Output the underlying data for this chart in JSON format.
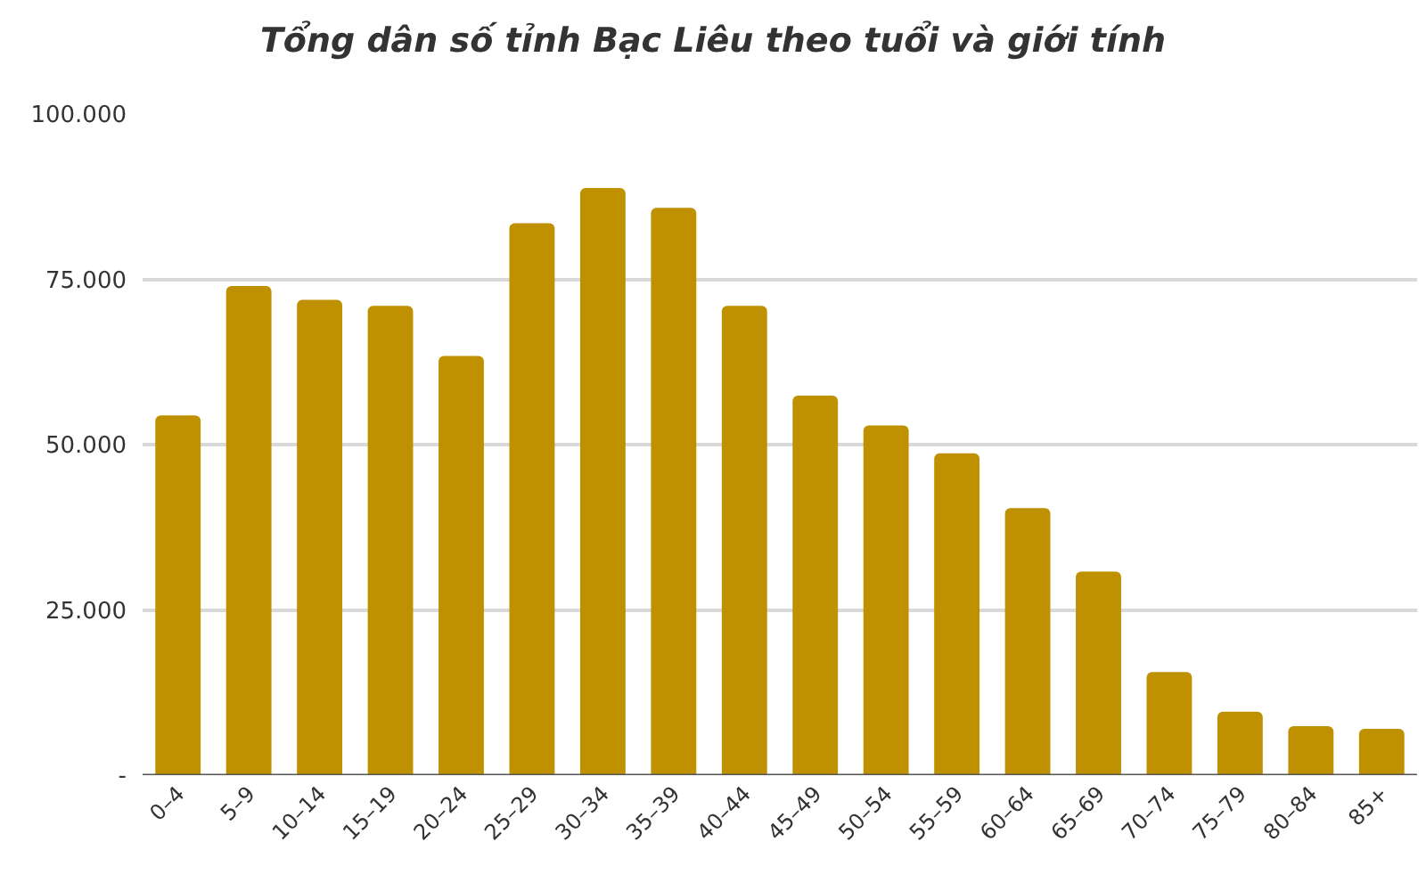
{
  "chart_data": {
    "type": "bar",
    "title": "Tổng dân số tỉnh Bạc Liêu theo tuổi và giới tính",
    "categories": [
      "0–4",
      "5–9",
      "10–14",
      "15–19",
      "20–24",
      "25–29",
      "30–34",
      "35–39",
      "40–44",
      "45–49",
      "50–54",
      "55–59",
      "60–64",
      "65–69",
      "70–74",
      "75–79",
      "80–84",
      "85+"
    ],
    "values": [
      54400,
      74000,
      71900,
      71000,
      63400,
      83500,
      88800,
      85800,
      71000,
      57400,
      52900,
      48700,
      40400,
      30800,
      15600,
      9600,
      7400,
      7000
    ],
    "color": "#bf9000",
    "ylim": [
      0,
      100000
    ],
    "yticks": [
      {
        "value": 0,
        "label": "-"
      },
      {
        "value": 25000,
        "label": "25.000"
      },
      {
        "value": 50000,
        "label": "50.000"
      },
      {
        "value": 75000,
        "label": "75.000"
      },
      {
        "value": 100000,
        "label": "100.000"
      }
    ],
    "grid": "y"
  }
}
